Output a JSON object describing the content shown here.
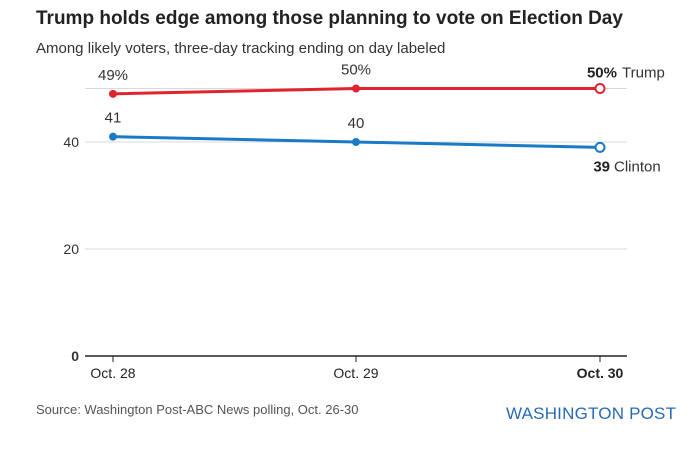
{
  "title": "Trump holds edge among those planning to vote on Election Day",
  "subtitle": "Among likely voters, three-day tracking ending on day labeled",
  "source": "Source: Washington Post-ABC News polling, Oct. 26-30",
  "brand": "WASHINGTON POST",
  "colors": {
    "trump": "#e0232f",
    "clinton": "#1a7bc4",
    "grid": "#d9d9d9",
    "axis": "#222222"
  },
  "chart_data": {
    "type": "line",
    "title": "Trump holds edge among those planning to vote on Election Day",
    "subtitle": "Among likely voters, three-day tracking ending on day labeled",
    "categories": [
      "Oct. 28",
      "Oct. 29",
      "Oct. 30"
    ],
    "ylim": [
      0,
      50
    ],
    "yticks": [
      0,
      20,
      40
    ],
    "ytick_labels": [
      "0",
      "20",
      "40"
    ],
    "xlabel": "",
    "ylabel": "",
    "grid": true,
    "series": [
      {
        "name": "Trump",
        "color": "#e0232f",
        "values": [
          49,
          50,
          50
        ],
        "point_labels": [
          "49%",
          "50%",
          "50%"
        ],
        "end_label": "Trump"
      },
      {
        "name": "Clinton",
        "color": "#1a7bc4",
        "values": [
          41,
          40,
          39
        ],
        "point_labels": [
          "41",
          "40",
          "39"
        ],
        "end_label": "Clinton"
      }
    ]
  }
}
